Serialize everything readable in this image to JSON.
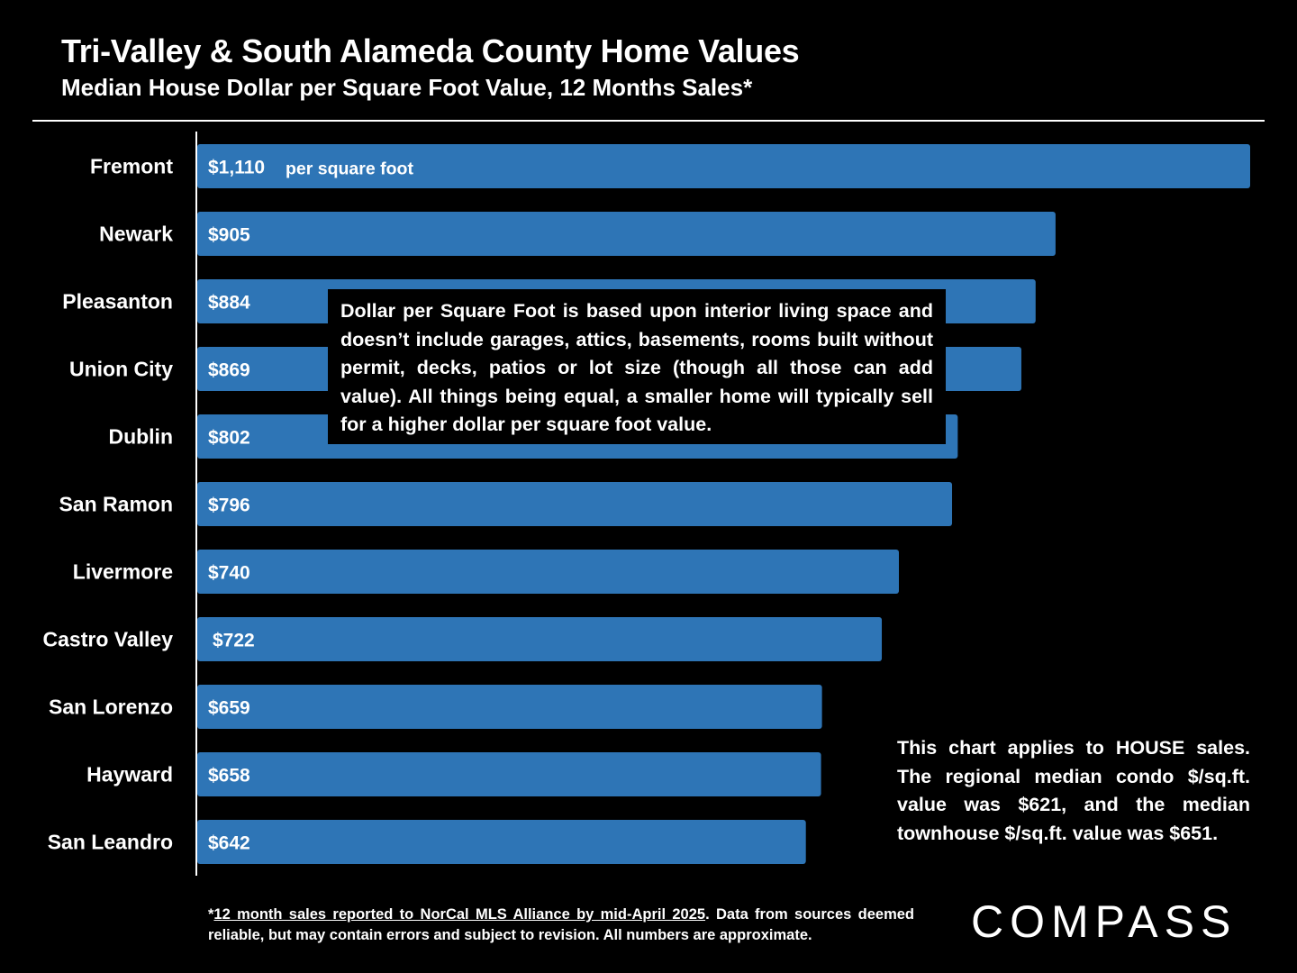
{
  "header": {
    "title": "Tri-Valley & South Alameda County Home Values",
    "subtitle": "Median House Dollar per Square Foot Value, 12 Months Sales*"
  },
  "chart_data": {
    "type": "bar",
    "orientation": "horizontal",
    "categories": [
      "Fremont",
      "Newark",
      "Pleasanton",
      "Union City",
      "Dublin",
      "San Ramon",
      "Livermore",
      "Castro Valley",
      "San Lorenzo",
      "Hayward",
      "San Leandro"
    ],
    "values": [
      1110,
      905,
      884,
      869,
      802,
      796,
      740,
      722,
      659,
      658,
      642
    ],
    "value_labels": [
      "$1,110",
      "$905",
      "$884",
      "$869",
      "$802",
      "$796",
      "$740",
      "$722",
      "$659",
      "$658",
      "$642"
    ],
    "first_label_suffix": "per square foot",
    "xlim": [
      0,
      1110
    ],
    "grid": false,
    "bar_color": "#2e75b6"
  },
  "notes": {
    "info_box": "Dollar per Square Foot is based upon interior living space and doesn’t include garages, attics, basements, rooms built without permit, decks, patios or lot size (though all those can add value). All things being equal, a smaller home will typically sell for a higher dollar per square foot value.",
    "side_note": "This chart applies to HOUSE sales. The regional median condo $/sq.ft. value was $621, and the median townhouse $/sq.ft. value was $651."
  },
  "footnote": {
    "prefix": "*",
    "source": "12 month sales reported to NorCal MLS Alliance by mid-April 2025",
    "rest": ". Data from sources deemed reliable, but may contain errors and subject to revision. All numbers are approximate."
  },
  "logo": {
    "text": "COMPASS"
  }
}
